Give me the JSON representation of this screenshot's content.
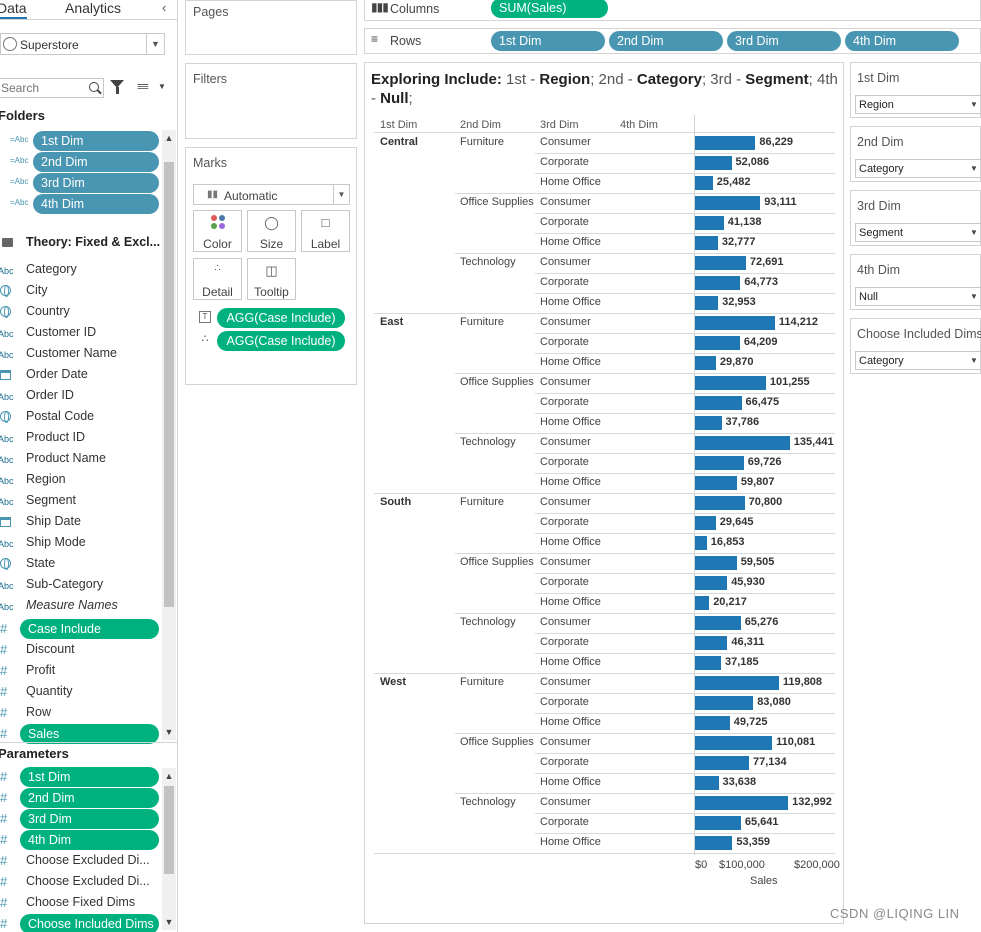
{
  "tabs": {
    "data": "Data",
    "analytics": "Analytics"
  },
  "datasource": "Superstore",
  "search": {
    "placeholder": "Search"
  },
  "sections": {
    "folders": "Folders",
    "parameters": "Parameters"
  },
  "dim_pills": [
    "1st Dim",
    "2nd Dim",
    "3rd Dim",
    "4th Dim"
  ],
  "folder_name": "Theory: Fixed & Excl...",
  "dimension_fields": [
    {
      "icon": "Abc",
      "name": "Category"
    },
    {
      "icon": "globe",
      "name": "City"
    },
    {
      "icon": "globe",
      "name": "Country"
    },
    {
      "icon": "Abc",
      "name": "Customer ID"
    },
    {
      "icon": "Abc",
      "name": "Customer Name"
    },
    {
      "icon": "cal",
      "name": "Order Date"
    },
    {
      "icon": "Abc",
      "name": "Order ID"
    },
    {
      "icon": "globe",
      "name": "Postal Code"
    },
    {
      "icon": "Abc",
      "name": "Product ID"
    },
    {
      "icon": "Abc",
      "name": "Product Name"
    },
    {
      "icon": "Abc",
      "name": "Region"
    },
    {
      "icon": "Abc",
      "name": "Segment"
    },
    {
      "icon": "cal",
      "name": "Ship Date"
    },
    {
      "icon": "Abc",
      "name": "Ship Mode"
    },
    {
      "icon": "globe",
      "name": "State"
    },
    {
      "icon": "Abc",
      "name": "Sub-Category"
    },
    {
      "icon": "Abc",
      "name": "Measure Names"
    }
  ],
  "measure_fields": [
    "Case Include",
    "Discount",
    "Profit",
    "Quantity",
    "Row",
    "Sales"
  ],
  "parameter_fields": [
    "1st Dim",
    "2nd Dim",
    "3rd Dim",
    "4th Dim",
    "Choose Excluded Di...",
    "Choose Excluded Di...",
    "Choose Fixed Dims",
    "Choose Included Dims"
  ],
  "cards": {
    "pages": "Pages",
    "filters": "Filters",
    "marks": "Marks",
    "mark_type": "Automatic",
    "mark_buttons": [
      "Color",
      "Size",
      "Label",
      "Detail",
      "Tooltip"
    ],
    "mark_pills": [
      "AGG(Case Include)",
      "AGG(Case Include)"
    ]
  },
  "shelves": {
    "columns_label": "Columns",
    "columns_pills": [
      "SUM(Sales)"
    ],
    "rows_label": "Rows",
    "rows_pills": [
      "1st Dim",
      "2nd Dim",
      "3rd Dim",
      "4th Dim"
    ]
  },
  "view_title": {
    "prefix": "Exploring Include: ",
    "parts": [
      {
        "label": "1st - ",
        "value": "Region"
      },
      {
        "label": "; 2nd - ",
        "value": "Category"
      },
      {
        "label": "; 3rd - ",
        "value": "Segment"
      },
      {
        "label": "; 4th - ",
        "value": "Null"
      }
    ],
    "suffix": ";"
  },
  "parameter_controls": [
    {
      "title": "1st Dim",
      "value": "Region"
    },
    {
      "title": "2nd Dim",
      "value": "Category"
    },
    {
      "title": "3rd Dim",
      "value": "Segment"
    },
    {
      "title": "4th Dim",
      "value": "Null"
    },
    {
      "title": "Choose Included Dims",
      "value": "Category"
    }
  ],
  "watermark": "CSDN @LIQING LIN",
  "chart_data": {
    "type": "bar",
    "orientation": "horizontal",
    "row_headers": [
      "1st Dim",
      "2nd Dim",
      "3rd Dim",
      "4th Dim"
    ],
    "xlabel": "Sales",
    "x_ticks": [
      "$0",
      "$100,000",
      "$200,000"
    ],
    "xlim": [
      0,
      200000
    ],
    "regions": [
      {
        "name": "Central",
        "categories": [
          {
            "name": "Furniture",
            "values": [
              86229,
              52086,
              25482
            ],
            "labels": [
              "86,229",
              "52,086",
              "25,482"
            ]
          },
          {
            "name": "Office Supplies",
            "values": [
              93111,
              41138,
              32777
            ],
            "labels": [
              "93,111",
              "41,138",
              "32,777"
            ]
          },
          {
            "name": "Technology",
            "values": [
              72691,
              64773,
              32953
            ],
            "labels": [
              "72,691",
              "64,773",
              "32,953"
            ]
          }
        ]
      },
      {
        "name": "East",
        "categories": [
          {
            "name": "Furniture",
            "values": [
              114212,
              64209,
              29870
            ],
            "labels": [
              "114,212",
              "64,209",
              "29,870"
            ]
          },
          {
            "name": "Office Supplies",
            "values": [
              101255,
              66475,
              37786
            ],
            "labels": [
              "101,255",
              "66,475",
              "37,786"
            ]
          },
          {
            "name": "Technology",
            "values": [
              135441,
              69726,
              59807
            ],
            "labels": [
              "135,441",
              "69,726",
              "59,807"
            ]
          }
        ]
      },
      {
        "name": "South",
        "categories": [
          {
            "name": "Furniture",
            "values": [
              70800,
              29645,
              16853
            ],
            "labels": [
              "70,800",
              "29,645",
              "16,853"
            ]
          },
          {
            "name": "Office Supplies",
            "values": [
              59505,
              45930,
              20217
            ],
            "labels": [
              "59,505",
              "45,930",
              "20,217"
            ]
          },
          {
            "name": "Technology",
            "values": [
              65276,
              46311,
              37185
            ],
            "labels": [
              "65,276",
              "46,311",
              "37,185"
            ]
          }
        ]
      },
      {
        "name": "West",
        "categories": [
          {
            "name": "Furniture",
            "values": [
              119808,
              83080,
              49725
            ],
            "labels": [
              "119,808",
              "83,080",
              "49,725"
            ]
          },
          {
            "name": "Office Supplies",
            "values": [
              110081,
              77134,
              33638
            ],
            "labels": [
              "110,081",
              "77,134",
              "33,638"
            ]
          },
          {
            "name": "Technology",
            "values": [
              132992,
              65641,
              53359
            ],
            "labels": [
              "132,992",
              "65,641",
              "53,359"
            ]
          }
        ]
      }
    ],
    "segments": [
      "Consumer",
      "Corporate",
      "Home Office"
    ],
    "bar_color": "#1f77b4",
    "grid": false
  }
}
